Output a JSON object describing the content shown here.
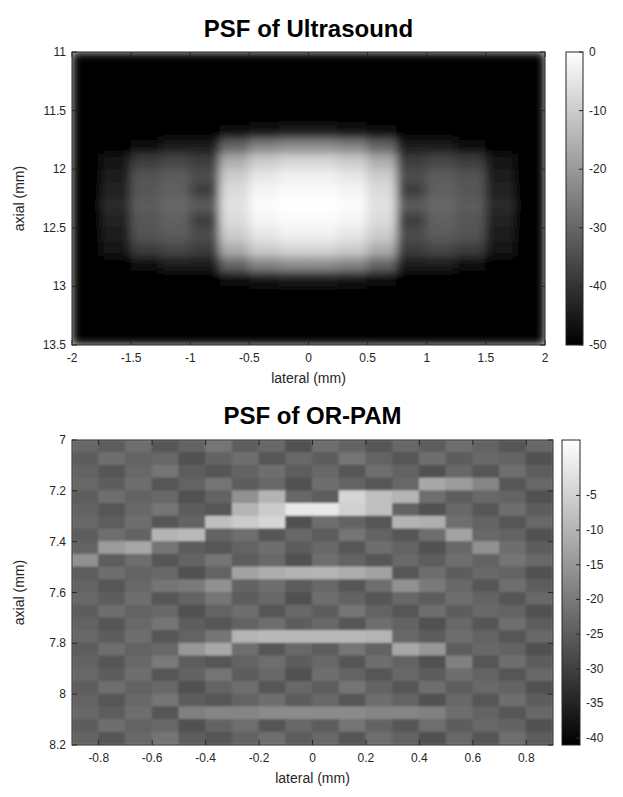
{
  "chart_data": [
    {
      "type": "heatmap",
      "title": "PSF of Ultrasound",
      "x_label": "lateral (mm)",
      "y_label": "axial (mm)",
      "xlim": [
        -2,
        2
      ],
      "ylim": [
        13.5,
        11
      ],
      "xticks": [
        -2,
        -1.5,
        -1,
        -0.5,
        0,
        0.5,
        1,
        1.5,
        2
      ],
      "yticks": [
        11,
        11.5,
        12,
        12.5,
        13,
        13.5
      ],
      "zlim": [
        -50,
        0
      ],
      "zticks": [
        0,
        -10,
        -20,
        -30,
        -40,
        -50
      ],
      "x": [
        -1.875,
        -1.625,
        -1.375,
        -1.125,
        -0.875,
        -0.625,
        -0.375,
        -0.125,
        0.125,
        0.375,
        0.625,
        0.875,
        1.125,
        1.375,
        1.625,
        1.875
      ],
      "y": [
        11.0625,
        11.1875,
        11.3125,
        11.4375,
        11.5625,
        11.6875,
        11.8125,
        11.9375,
        12.0625,
        12.1875,
        12.3125,
        12.4375,
        12.5625,
        12.6875,
        12.8125,
        12.9375,
        13.0625,
        13.1875,
        13.3125,
        13.4375
      ],
      "z": [
        [
          -50,
          -50,
          -50,
          -50,
          -50,
          -50,
          -50,
          -50,
          -50,
          -50,
          -50,
          -50,
          -50,
          -50,
          -50,
          -50
        ],
        [
          -50,
          -50,
          -50,
          -50,
          -50,
          -50,
          -50,
          -50,
          -50,
          -50,
          -50,
          -50,
          -50,
          -50,
          -50,
          -50
        ],
        [
          -50,
          -50,
          -50,
          -50,
          -50,
          -50,
          -50,
          -50,
          -50,
          -50,
          -50,
          -50,
          -50,
          -50,
          -50,
          -50
        ],
        [
          -50,
          -50,
          -50,
          -50,
          -50,
          -50,
          -50,
          -50,
          -50,
          -50,
          -50,
          -50,
          -50,
          -50,
          -50,
          -50
        ],
        [
          -50,
          -50,
          -50,
          -50,
          -50,
          -50,
          -50,
          -50,
          -50,
          -50,
          -50,
          -50,
          -50,
          -50,
          -50,
          -50
        ],
        [
          -50,
          -50,
          -50,
          -50,
          -50,
          -48,
          -46,
          -45,
          -45,
          -46,
          -48,
          -50,
          -50,
          -50,
          -50,
          -50
        ],
        [
          -50,
          -50,
          -48,
          -45,
          -45,
          -30,
          -24,
          -22,
          -22,
          -24,
          -30,
          -45,
          -45,
          -48,
          -50,
          -50
        ],
        [
          -50,
          -46,
          -38,
          -36,
          -38,
          -16,
          -10,
          -8,
          -8,
          -10,
          -16,
          -38,
          -36,
          -38,
          -46,
          -50
        ],
        [
          -50,
          -44,
          -34,
          -32,
          -35,
          -10,
          -5,
          -3,
          -3,
          -5,
          -10,
          -35,
          -32,
          -34,
          -44,
          -50
        ],
        [
          -50,
          -43,
          -33,
          -31,
          -38,
          -7,
          -2,
          -1,
          -1,
          -2,
          -7,
          -38,
          -31,
          -33,
          -43,
          -50
        ],
        [
          -50,
          -42,
          -32,
          -30,
          -32,
          -6,
          -1,
          0,
          0,
          -1,
          -6,
          -32,
          -30,
          -32,
          -42,
          -50
        ],
        [
          -50,
          -43,
          -33,
          -31,
          -38,
          -7,
          -2,
          -1,
          -1,
          -2,
          -7,
          -38,
          -31,
          -33,
          -43,
          -50
        ],
        [
          -50,
          -44,
          -34,
          -32,
          -35,
          -10,
          -5,
          -3,
          -3,
          -5,
          -10,
          -35,
          -32,
          -34,
          -44,
          -50
        ],
        [
          -50,
          -46,
          -38,
          -36,
          -38,
          -16,
          -10,
          -8,
          -8,
          -10,
          -16,
          -38,
          -36,
          -38,
          -46,
          -50
        ],
        [
          -50,
          -50,
          -48,
          -45,
          -45,
          -30,
          -24,
          -22,
          -22,
          -24,
          -30,
          -45,
          -45,
          -48,
          -50,
          -50
        ],
        [
          -50,
          -50,
          -50,
          -50,
          -50,
          -48,
          -46,
          -45,
          -45,
          -46,
          -48,
          -50,
          -50,
          -50,
          -50,
          -50
        ],
        [
          -50,
          -50,
          -50,
          -50,
          -50,
          -50,
          -50,
          -50,
          -50,
          -50,
          -50,
          -50,
          -50,
          -50,
          -50,
          -50
        ],
        [
          -50,
          -50,
          -50,
          -50,
          -50,
          -50,
          -50,
          -50,
          -50,
          -50,
          -50,
          -50,
          -50,
          -50,
          -50,
          -50
        ],
        [
          -50,
          -50,
          -50,
          -50,
          -50,
          -50,
          -50,
          -50,
          -50,
          -50,
          -50,
          -50,
          -50,
          -50,
          -50,
          -50
        ],
        [
          -50,
          -50,
          -50,
          -50,
          -50,
          -50,
          -50,
          -50,
          -50,
          -50,
          -50,
          -50,
          -50,
          -50,
          -50,
          -50
        ]
      ]
    },
    {
      "type": "heatmap",
      "title": "PSF of OR-PAM",
      "x_label": "lateral (mm)",
      "y_label": "axial (mm)",
      "xlim": [
        -0.9,
        0.9
      ],
      "ylim": [
        8.2,
        7
      ],
      "xticks": [
        -0.8,
        -0.6,
        -0.4,
        -0.2,
        0,
        0.2,
        0.4,
        0.6,
        0.8
      ],
      "yticks": [
        7,
        7.2,
        7.4,
        7.6,
        7.8,
        8,
        8.2
      ],
      "zlim": [
        -41,
        3
      ],
      "zticks": [
        -5,
        -10,
        -15,
        -20,
        -25,
        -30,
        -35,
        -40
      ],
      "x": [
        -0.85,
        -0.75,
        -0.65,
        -0.55,
        -0.45,
        -0.35,
        -0.25,
        -0.15,
        -0.05,
        0.05,
        0.15,
        0.25,
        0.35,
        0.45,
        0.55,
        0.65,
        0.75,
        0.85
      ],
      "y": [
        7.025,
        7.075,
        7.125,
        7.175,
        7.225,
        7.275,
        7.325,
        7.375,
        7.425,
        7.475,
        7.525,
        7.575,
        7.625,
        7.675,
        7.725,
        7.775,
        7.825,
        7.875,
        7.925,
        7.975,
        8.025,
        8.075,
        8.125,
        8.175
      ],
      "z": [
        [
          -23,
          -25,
          -22,
          -26,
          -24,
          -21,
          -25,
          -23,
          -27,
          -22,
          -24,
          -26,
          -23,
          -25,
          -22,
          -24,
          -26,
          -23
        ],
        [
          -25,
          -22,
          -24,
          -23,
          -27,
          -24,
          -22,
          -26,
          -23,
          -25,
          -21,
          -24,
          -26,
          -22,
          -25,
          -23,
          -24,
          -27
        ],
        [
          -24,
          -26,
          -23,
          -21,
          -25,
          -26,
          -24,
          -22,
          -25,
          -23,
          -26,
          -22,
          -24,
          -27,
          -23,
          -26,
          -22,
          -25
        ],
        [
          -23,
          -25,
          -22,
          -26,
          -24,
          -21,
          -25,
          -23,
          -27,
          -22,
          -24,
          -26,
          -23,
          -12,
          -14,
          -18,
          -26,
          -23
        ],
        [
          -25,
          -22,
          -24,
          -23,
          -27,
          -24,
          -16,
          -10,
          -23,
          -25,
          -4,
          -8,
          -10,
          -22,
          -25,
          -23,
          -24,
          -27
        ],
        [
          -24,
          -26,
          -23,
          -21,
          -25,
          -26,
          -10,
          -6,
          -1,
          -1,
          -5,
          -8,
          -24,
          -27,
          -23,
          -26,
          -22,
          -25
        ],
        [
          -23,
          -25,
          -22,
          -26,
          -24,
          -8,
          -6,
          -4,
          -27,
          -22,
          -24,
          -26,
          -10,
          -11,
          -22,
          -24,
          -26,
          -23
        ],
        [
          -25,
          -22,
          -24,
          -10,
          -9,
          -24,
          -22,
          -26,
          -23,
          -25,
          -21,
          -24,
          -26,
          -22,
          -13,
          -23,
          -24,
          -27
        ],
        [
          -24,
          -14,
          -12,
          -21,
          -25,
          -26,
          -24,
          -22,
          -25,
          -23,
          -26,
          -22,
          -24,
          -27,
          -23,
          -16,
          -22,
          -25
        ],
        [
          -16,
          -25,
          -22,
          -26,
          -24,
          -21,
          -25,
          -23,
          -27,
          -22,
          -24,
          -26,
          -23,
          -25,
          -22,
          -24,
          -21,
          -23
        ],
        [
          -25,
          -22,
          -24,
          -23,
          -27,
          -24,
          -13,
          -11,
          -10,
          -10,
          -11,
          -13,
          -26,
          -22,
          -25,
          -23,
          -24,
          -27
        ],
        [
          -24,
          -26,
          -23,
          -21,
          -20,
          -16,
          -24,
          -22,
          -25,
          -23,
          -26,
          -22,
          -16,
          -20,
          -23,
          -26,
          -22,
          -25
        ],
        [
          -23,
          -25,
          -22,
          -26,
          -24,
          -21,
          -25,
          -23,
          -27,
          -22,
          -24,
          -26,
          -23,
          -25,
          -22,
          -24,
          -26,
          -23
        ],
        [
          -25,
          -22,
          -24,
          -23,
          -27,
          -24,
          -22,
          -26,
          -23,
          -25,
          -21,
          -24,
          -26,
          -22,
          -25,
          -23,
          -24,
          -27
        ],
        [
          -24,
          -26,
          -23,
          -21,
          -25,
          -26,
          -24,
          -22,
          -25,
          -23,
          -26,
          -22,
          -24,
          -27,
          -23,
          -26,
          -22,
          -25
        ],
        [
          -23,
          -25,
          -22,
          -26,
          -24,
          -21,
          -10,
          -9,
          -9,
          -9,
          -9,
          -10,
          -23,
          -25,
          -22,
          -24,
          -26,
          -23
        ],
        [
          -25,
          -22,
          -24,
          -23,
          -15,
          -12,
          -22,
          -26,
          -23,
          -25,
          -21,
          -24,
          -12,
          -15,
          -25,
          -23,
          -24,
          -27
        ],
        [
          -24,
          -26,
          -23,
          -20,
          -25,
          -26,
          -24,
          -22,
          -25,
          -23,
          -26,
          -22,
          -24,
          -27,
          -19,
          -26,
          -22,
          -25
        ],
        [
          -23,
          -25,
          -22,
          -26,
          -24,
          -21,
          -25,
          -23,
          -27,
          -22,
          -24,
          -26,
          -23,
          -25,
          -22,
          -24,
          -26,
          -23
        ],
        [
          -25,
          -22,
          -24,
          -23,
          -27,
          -24,
          -22,
          -26,
          -23,
          -25,
          -21,
          -24,
          -26,
          -22,
          -25,
          -23,
          -24,
          -27
        ],
        [
          -24,
          -26,
          -23,
          -21,
          -25,
          -26,
          -24,
          -22,
          -25,
          -23,
          -26,
          -22,
          -24,
          -27,
          -23,
          -26,
          -22,
          -25
        ],
        [
          -23,
          -25,
          -22,
          -26,
          -19,
          -18,
          -18,
          -17,
          -17,
          -17,
          -17,
          -18,
          -18,
          -19,
          -22,
          -24,
          -26,
          -23
        ],
        [
          -25,
          -22,
          -24,
          -23,
          -27,
          -24,
          -22,
          -26,
          -23,
          -25,
          -21,
          -24,
          -26,
          -22,
          -25,
          -23,
          -24,
          -27
        ],
        [
          -24,
          -26,
          -23,
          -21,
          -25,
          -26,
          -24,
          -22,
          -25,
          -23,
          -26,
          -22,
          -24,
          -27,
          -23,
          -26,
          -22,
          -25
        ]
      ]
    }
  ]
}
